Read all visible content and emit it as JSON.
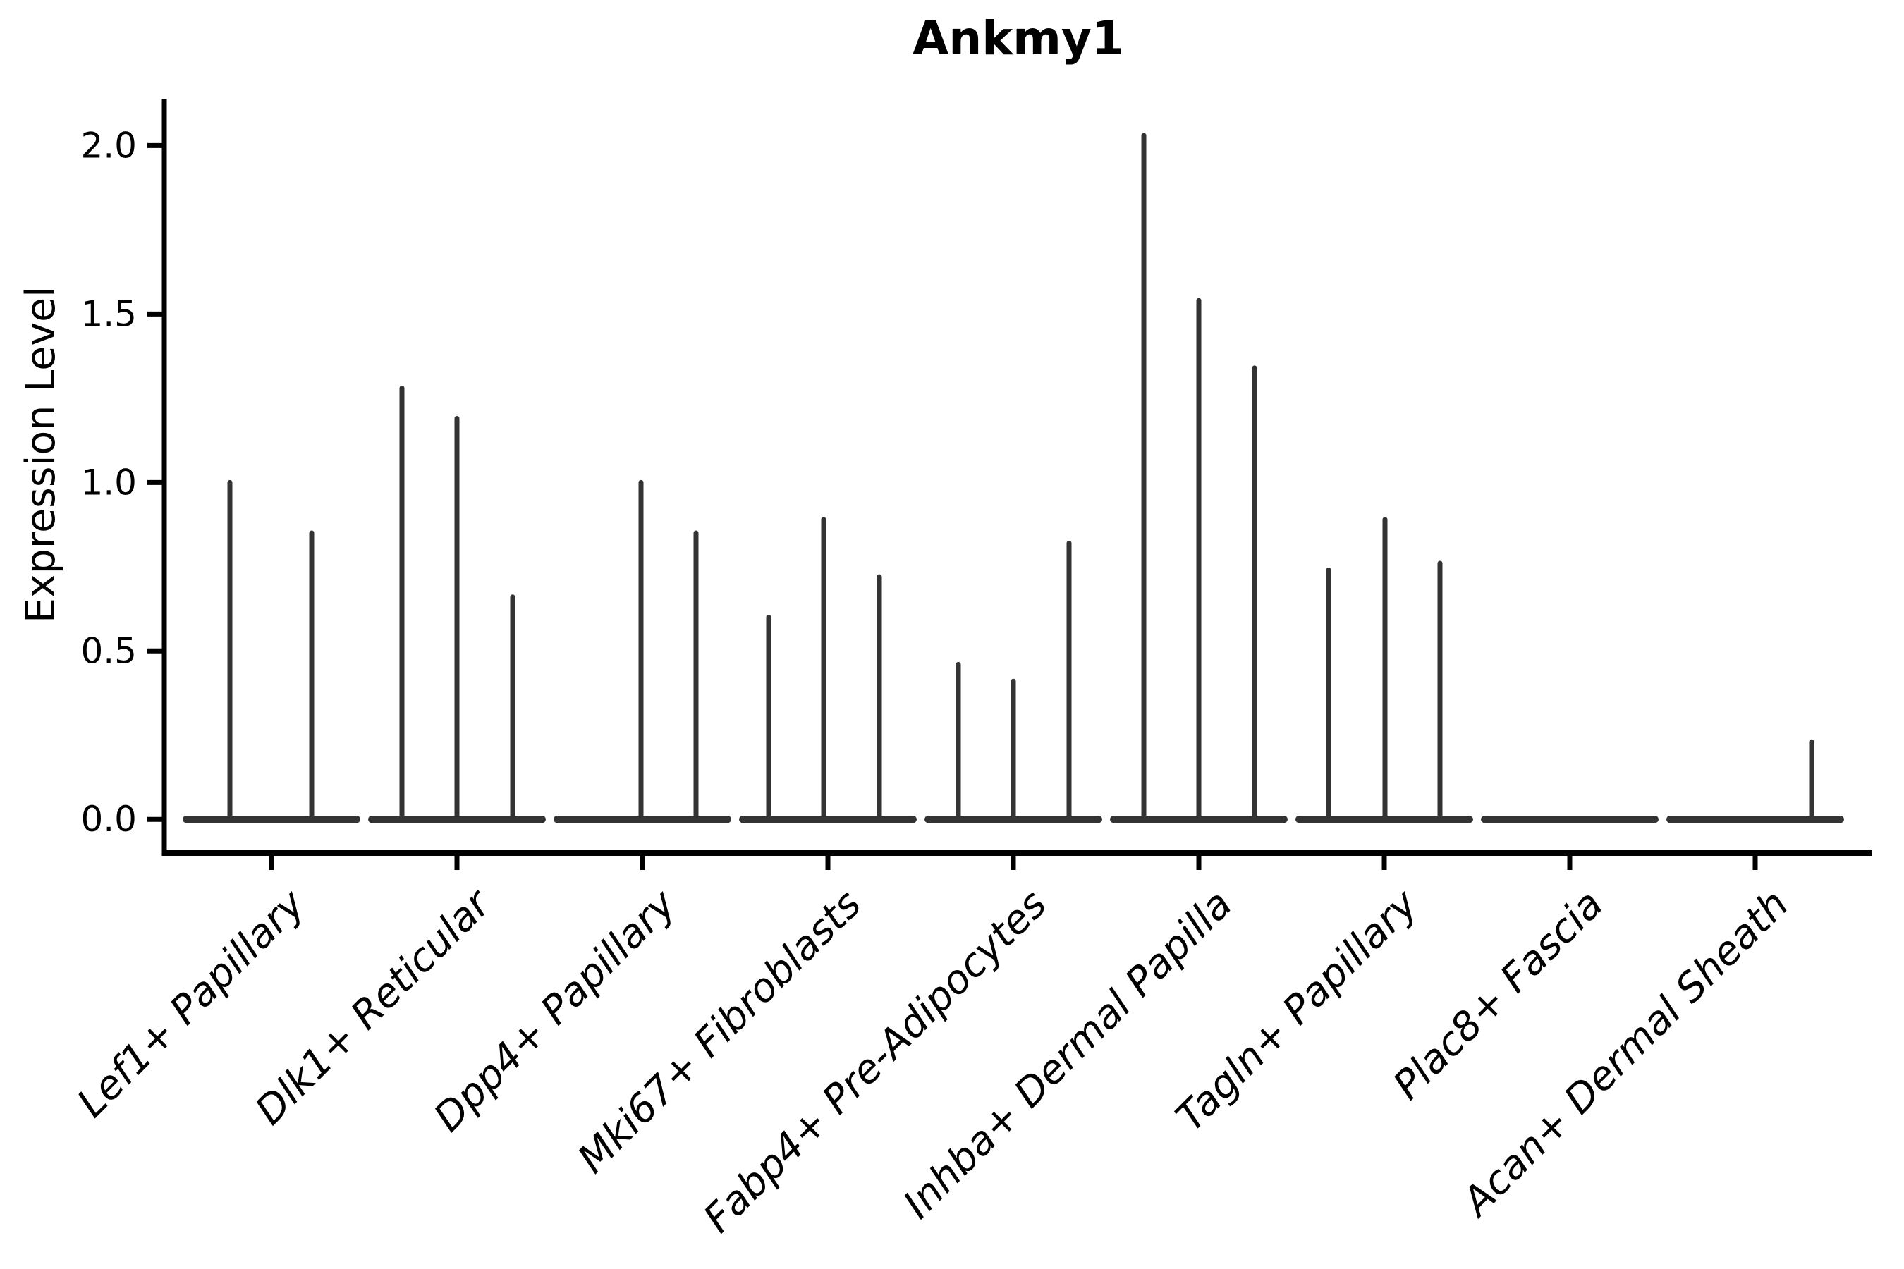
{
  "header": {
    "title": "Ankmy1"
  },
  "colors": {
    "violin": "#333333",
    "axis": "#000000",
    "text": "#000000",
    "background": "#ffffff"
  },
  "chart_data": {
    "type": "violin",
    "title": "Ankmy1",
    "xlabel": "",
    "ylabel": "Expression Level",
    "ylim": [
      -0.1,
      2.139
    ],
    "yticks": [
      0.0,
      0.5,
      1.0,
      1.5,
      2.0
    ],
    "ytick_labels": [
      "0.0",
      "0.5",
      "1.0",
      "1.5",
      "2.0"
    ],
    "grid": false,
    "legend": "none",
    "description": "Violin plot of Ankmy1 expression per fibroblast cell type; most cells at 0 so violins collapse to a flat base line with thin spikes reaching the maximum expressing cells.",
    "categories": [
      "Lef1+ Papillary",
      "Dlk1+ Reticular",
      "Dpp4+ Papillary",
      "Mki67+ Fibroblasts",
      "Fabp4+ Pre-Adipocytes",
      "Inhba+ Dermal Papilla",
      "Tagln+ Papillary",
      "Plac8+ Fascia",
      "Acan+ Dermal Sheath"
    ],
    "violins": [
      {
        "category": "Lef1+ Papillary",
        "base_value": 0,
        "spikes": [
          {
            "dx": -59,
            "max": 1.0
          },
          {
            "dx": 57,
            "max": 0.85
          }
        ]
      },
      {
        "category": "Dlk1+ Reticular",
        "base_value": 0,
        "spikes": [
          {
            "dx": -78,
            "max": 1.28
          },
          {
            "dx": 0,
            "max": 1.19
          },
          {
            "dx": 79,
            "max": 0.66
          }
        ]
      },
      {
        "category": "Dpp4+ Papillary",
        "base_value": 0,
        "spikes": [
          {
            "dx": -2,
            "max": 1.0
          },
          {
            "dx": 76,
            "max": 0.85
          }
        ]
      },
      {
        "category": "Mki67+ Fibroblasts",
        "base_value": 0,
        "spikes": [
          {
            "dx": -84,
            "max": 0.6
          },
          {
            "dx": -6,
            "max": 0.89
          },
          {
            "dx": 73,
            "max": 0.72
          }
        ]
      },
      {
        "category": "Fabp4+ Pre-Adipocytes",
        "base_value": 0,
        "spikes": [
          {
            "dx": -78,
            "max": 0.46
          },
          {
            "dx": 0,
            "max": 0.41
          },
          {
            "dx": 79,
            "max": 0.82
          }
        ]
      },
      {
        "category": "Inhba+ Dermal Papilla",
        "base_value": 0,
        "spikes": [
          {
            "dx": -78,
            "max": 2.03
          },
          {
            "dx": 0,
            "max": 1.54
          },
          {
            "dx": 79,
            "max": 1.34
          }
        ]
      },
      {
        "category": "Tagln+ Papillary",
        "base_value": 0,
        "spikes": [
          {
            "dx": -79,
            "max": 0.74
          },
          {
            "dx": 1,
            "max": 0.89
          },
          {
            "dx": 79,
            "max": 0.76
          }
        ]
      },
      {
        "category": "Plac8+ Fascia",
        "base_value": 0,
        "spikes": []
      },
      {
        "category": "Acan+ Dermal Sheath",
        "base_value": 0,
        "spikes": [
          {
            "dx": 80,
            "max": 0.23
          }
        ]
      }
    ]
  }
}
